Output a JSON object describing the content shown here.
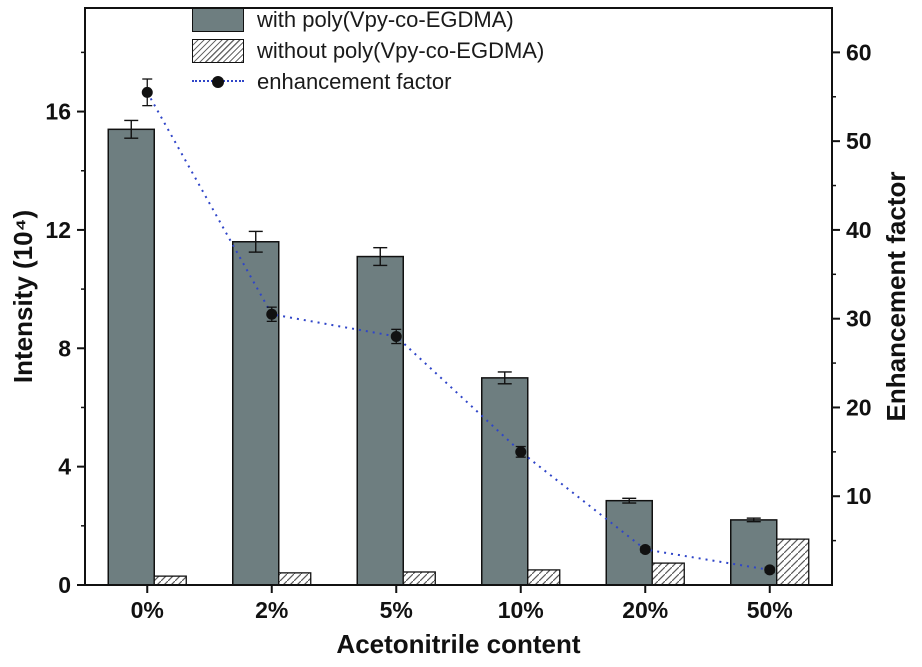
{
  "chart_data": {
    "type": "bar+line",
    "title": "",
    "xlabel": "Acetonitrile content",
    "ylabel_left": "Intensity (10⁴)",
    "ylabel_right": "Enhancement factor",
    "categories": [
      "0%",
      "2%",
      "5%",
      "10%",
      "20%",
      "50%"
    ],
    "series": [
      {
        "name": "with poly(Vpy-co-EGDMA)",
        "type": "bar",
        "style": "solid",
        "axis": "left",
        "color": "#6e7e80",
        "values": [
          15.4,
          11.6,
          11.1,
          7.0,
          2.85,
          2.2
        ],
        "errors": [
          0.3,
          0.35,
          0.3,
          0.2,
          0.08,
          0.06
        ]
      },
      {
        "name": "without poly(Vpy-co-EGDMA)",
        "type": "bar",
        "style": "hatched",
        "axis": "left",
        "color": "#ffffff",
        "values": [
          0.3,
          0.41,
          0.44,
          0.51,
          0.74,
          1.55
        ],
        "errors": [
          0,
          0,
          0,
          0,
          0,
          0
        ]
      },
      {
        "name": "enhancement factor",
        "type": "line",
        "style": "dotted",
        "axis": "right",
        "color": "#2f45c8",
        "dot_color": "#111111",
        "values": [
          55.5,
          30.5,
          28.0,
          15.0,
          4.0,
          1.7
        ],
        "errors": [
          1.5,
          0.8,
          0.8,
          0.6,
          0.3,
          0.3
        ]
      }
    ],
    "left_axis": {
      "ticks": [
        0,
        4,
        8,
        12,
        16
      ],
      "range": [
        0,
        19.5
      ]
    },
    "right_axis": {
      "ticks": [
        10,
        20,
        30,
        40,
        50,
        60
      ],
      "range": [
        0,
        65
      ]
    },
    "legend_position": "top-left-inside",
    "grid": false
  }
}
